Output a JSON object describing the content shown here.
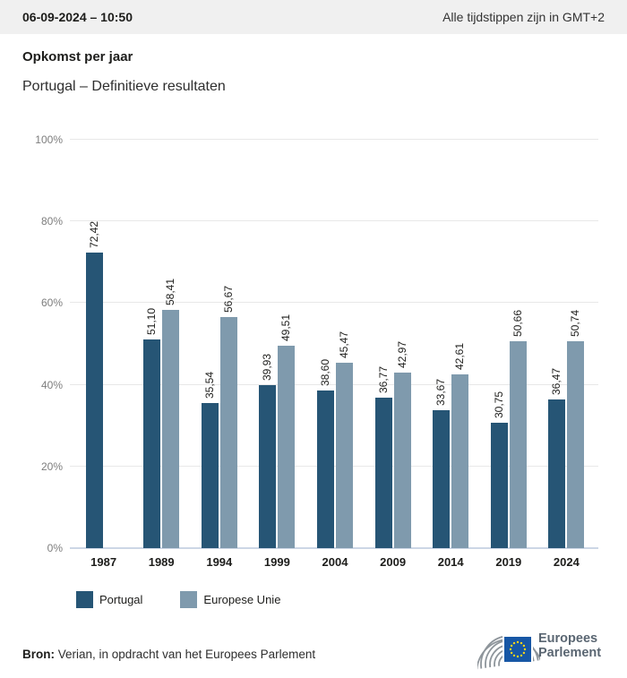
{
  "header": {
    "datetime": "06-09-2024 – 10:50",
    "timezone_note": "Alle tijdstippen zijn in GMT+2"
  },
  "title": "Opkomst per jaar",
  "subtitle": "Portugal – Definitieve resultaten",
  "legend": [
    {
      "label": "Portugal",
      "color": "#265575"
    },
    {
      "label": "Europese Unie",
      "color": "#7f9aad"
    }
  ],
  "footer": {
    "source_prefix": "Bron:",
    "source_text": " Verian, in opdracht van het Europees Parlement",
    "logo_line1": "Europees",
    "logo_line2": "Parlement"
  },
  "colors": {
    "header_background": "#f0f0f0",
    "bar_dark": "#265575",
    "bar_light": "#7f9aad",
    "gridline": "#e8e8e8",
    "baseline": "#ccd6e6",
    "axis_label": "#7d7d7d",
    "text_dark": "#1d1d1b",
    "eu_flag_blue": "#1757a5",
    "eu_star_yellow": "#ffd617",
    "logo_gray": "#8e959b"
  },
  "chart_data": {
    "type": "bar",
    "title": "Opkomst per jaar",
    "subtitle": "Portugal – Definitieve resultaten",
    "categories": [
      "1987",
      "1989",
      "1994",
      "1999",
      "2004",
      "2009",
      "2014",
      "2019",
      "2024"
    ],
    "series": [
      {
        "name": "Portugal",
        "color": "#265575",
        "values": [
          72.42,
          51.1,
          35.54,
          39.93,
          38.6,
          36.77,
          33.67,
          30.75,
          36.47
        ],
        "value_labels": [
          "72,42",
          "51,10",
          "35,54",
          "39,93",
          "38,60",
          "36,77",
          "33,67",
          "30,75",
          "36,47"
        ]
      },
      {
        "name": "Europese Unie",
        "color": "#7f9aad",
        "values": [
          null,
          58.41,
          56.67,
          49.51,
          45.47,
          42.97,
          42.61,
          50.66,
          50.74
        ],
        "value_labels": [
          null,
          "58,41",
          "56,67",
          "49,51",
          "45,47",
          "42,97",
          "42,61",
          "50,66",
          "50,74"
        ]
      }
    ],
    "xlabel": "",
    "ylabel": "",
    "ylim": [
      0,
      100
    ],
    "yticks": [
      0,
      20,
      40,
      60,
      80,
      100
    ],
    "ytick_suffix": "%",
    "grid": true,
    "legend_position": "bottom",
    "value_label_rotation": -90
  }
}
